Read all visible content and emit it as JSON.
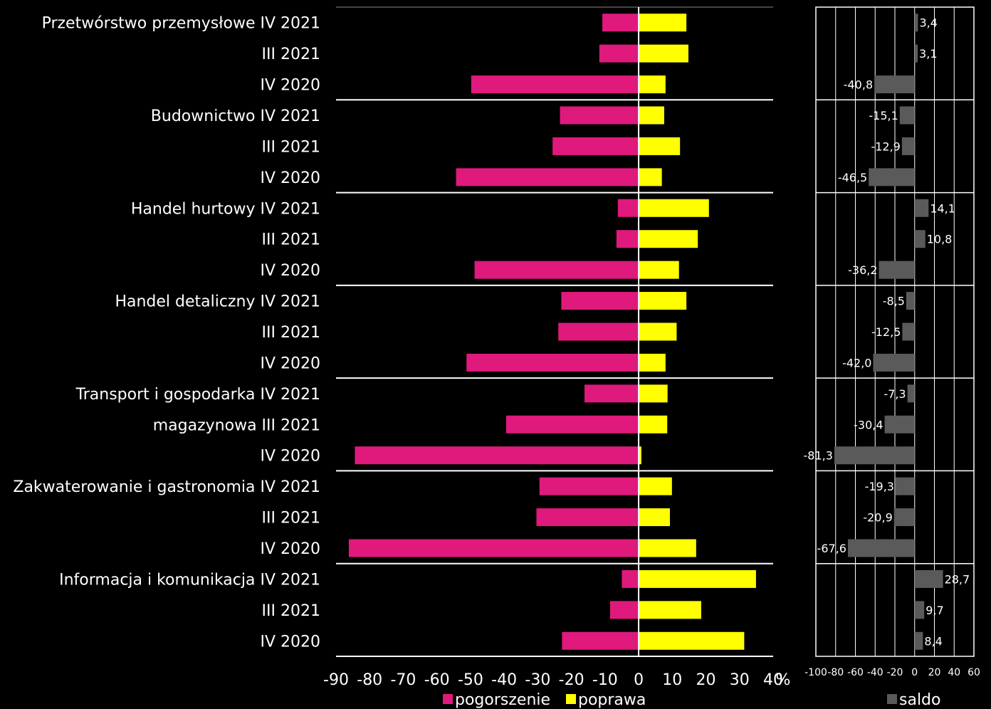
{
  "chart_data": [
    {
      "type": "bar",
      "orientation": "horizontal",
      "categories": [
        "Przetwórstwo przemysłowe IV 2021",
        "III 2021",
        "IV 2020",
        "Budownictwo IV 2021",
        "III 2021",
        "IV 2020",
        "Handel hurtowy IV 2021",
        "III 2021",
        "IV 2020",
        "Handel detaliczny IV 2021",
        "III 2021",
        "IV 2020",
        "Transport i gospodarka IV 2021",
        "magazynowa  III 2021",
        "IV 2020",
        "Zakwaterowanie i gastronomia IV 2021",
        "III 2021",
        "IV 2020",
        "Informacja i komunikacja IV 2021",
        "III 2021",
        "IV 2020"
      ],
      "series": [
        {
          "name": "pogorszenie",
          "color": "#e0197d",
          "values": [
            -10.8,
            -11.7,
            -49.8,
            -23.4,
            -25.6,
            -54.3,
            -6.2,
            -6.6,
            -48.8,
            -23.0,
            -23.9,
            -51.2,
            -16.1,
            -39.4,
            -84.4,
            -29.5,
            -30.4,
            -86.2,
            -5.0,
            -8.5,
            -22.8
          ]
        },
        {
          "name": "poprawa",
          "color": "#ffff00",
          "values": [
            14.2,
            14.8,
            8.0,
            7.6,
            12.3,
            6.9,
            20.9,
            17.6,
            12.0,
            14.2,
            11.3,
            8.0,
            8.6,
            8.5,
            0.8,
            9.9,
            9.3,
            17.1,
            34.9,
            18.6,
            31.4
          ]
        }
      ],
      "xlim": [
        -90,
        40
      ],
      "xticks": [
        "-90",
        "-80",
        "-70",
        "-60",
        "-50",
        "-40",
        "-30",
        "-20",
        "-10",
        "0",
        "10",
        "20",
        "30",
        "40"
      ],
      "unit": "%",
      "legend": "bottom"
    },
    {
      "type": "bar",
      "orientation": "horizontal",
      "series": [
        {
          "name": "saldo",
          "color": "#5a5a5a",
          "values": [
            3.4,
            3.1,
            -40.8,
            -15.1,
            -12.9,
            -46.5,
            14.1,
            10.8,
            -36.2,
            -8.5,
            -12.5,
            -42.0,
            -7.3,
            -30.4,
            -81.3,
            -19.3,
            -20.9,
            -67.6,
            28.7,
            9.7,
            8.4
          ],
          "labels": [
            "3,4",
            "3,1",
            "-40,8",
            "-15,1",
            "-12,9",
            "-46,5",
            "14,1",
            "10,8",
            "-36,2",
            "-8,5",
            "-12,5",
            "-42,0",
            "-7,3",
            "-30,4",
            "-81,3",
            "-19,3",
            "-20,9",
            "-67,6",
            "28,7",
            "9,7",
            "8,4"
          ]
        }
      ],
      "xlim": [
        -100,
        60
      ],
      "xticks": [
        "-100",
        "-80",
        "-60",
        "-40",
        "-20",
        "0",
        "20",
        "40",
        "60"
      ],
      "legend": "bottom"
    }
  ]
}
